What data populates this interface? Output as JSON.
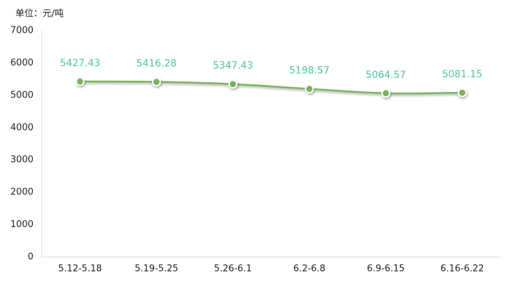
{
  "chart_data": {
    "type": "line",
    "ylabel": "单位：元/吨",
    "categories": [
      "5.12-5.18",
      "5.19-5.25",
      "5.26-6.1",
      "6.2-6.8",
      "6.9-6.15",
      "6.16-6.22"
    ],
    "values": [
      5427.43,
      5416.28,
      5347.43,
      5198.57,
      5064.57,
      5081.15
    ],
    "color": "#7cb35a",
    "label_color": "#4cc5a5",
    "ylim": [
      0,
      7000
    ],
    "yticks": [
      0,
      1000,
      2000,
      3000,
      4000,
      5000,
      6000,
      7000
    ],
    "grid": false
  }
}
